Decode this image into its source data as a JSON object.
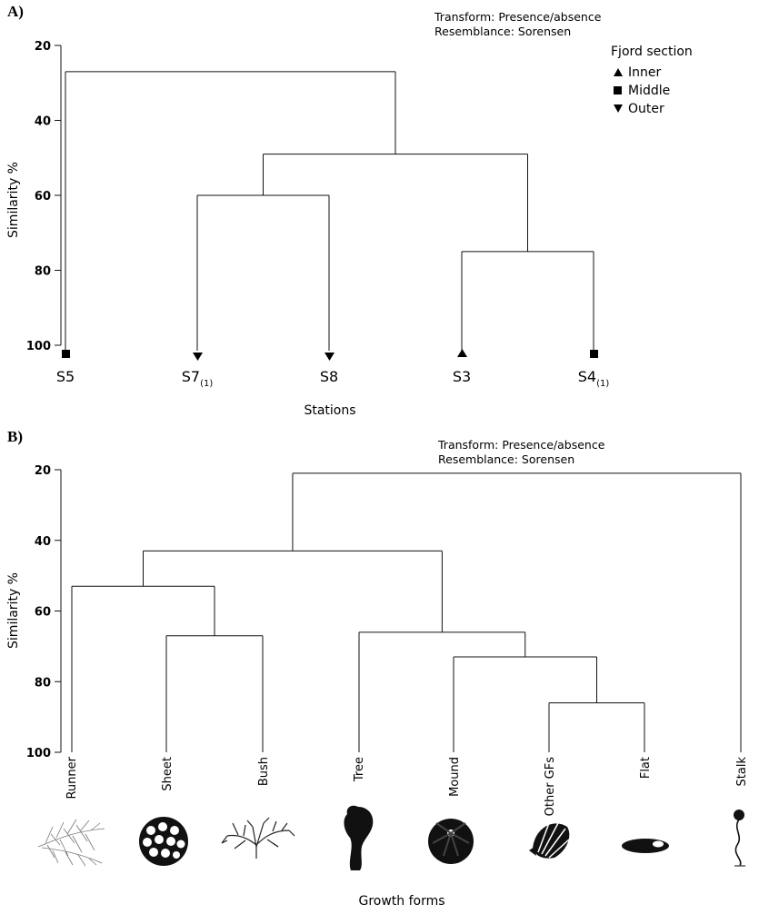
{
  "chart_data": [
    {
      "type": "dendrogram",
      "panel_label": "A)",
      "annotation": [
        "Transform: Presence/absence",
        "Resemblance: Sorensen"
      ],
      "xlabel": "Stations",
      "ylabel": "Similarity %",
      "ylim": [
        20,
        100
      ],
      "yticks": [
        20,
        40,
        60,
        80,
        100
      ],
      "legend": {
        "title": "Fjord section",
        "position": "top-right",
        "entries": [
          {
            "label": "Inner",
            "marker": "triangle-up"
          },
          {
            "label": "Middle",
            "marker": "square"
          },
          {
            "label": "Outer",
            "marker": "triangle-down"
          }
        ]
      },
      "leaves": [
        {
          "label": "S5",
          "sub": "",
          "marker": "square"
        },
        {
          "label": "S7",
          "sub": "(1)",
          "marker": "triangle-down"
        },
        {
          "label": "S8",
          "sub": "",
          "marker": "triangle-down"
        },
        {
          "label": "S3",
          "sub": "",
          "marker": "triangle-up"
        },
        {
          "label": "S4",
          "sub": "(1)",
          "marker": "square"
        }
      ],
      "merges": [
        {
          "a": "L1",
          "b": "L2",
          "sim": 60
        },
        {
          "a": "L3",
          "b": "L4",
          "sim": 75
        },
        {
          "a": "M0",
          "b": "M1",
          "sim": 49
        },
        {
          "a": "L0",
          "b": "M2",
          "sim": 27
        }
      ]
    },
    {
      "type": "dendrogram",
      "panel_label": "B)",
      "annotation": [
        "Transform: Presence/absence",
        "Resemblance: Sorensen"
      ],
      "xlabel": "Growth forms",
      "ylabel": "Similarity %",
      "ylim": [
        20,
        100
      ],
      "yticks": [
        20,
        40,
        60,
        80,
        100
      ],
      "leaves": [
        {
          "label": "Runner",
          "icon": "runner-icon"
        },
        {
          "label": "Sheet",
          "icon": "sheet-icon"
        },
        {
          "label": "Bush",
          "icon": "bush-icon"
        },
        {
          "label": "Tree",
          "icon": "tree-icon"
        },
        {
          "label": "Mound",
          "icon": "mound-icon"
        },
        {
          "label": "Other GFs",
          "icon": "other-gfs-icon"
        },
        {
          "label": "Flat",
          "icon": "flat-icon"
        },
        {
          "label": "Stalk",
          "icon": "stalk-icon"
        }
      ],
      "merges": [
        {
          "a": "L5",
          "b": "L6",
          "sim": 86
        },
        {
          "a": "L1",
          "b": "L2",
          "sim": 67
        },
        {
          "a": "L4",
          "b": "M0",
          "sim": 73
        },
        {
          "a": "L0",
          "b": "M1",
          "sim": 53
        },
        {
          "a": "L3",
          "b": "M2",
          "sim": 66
        },
        {
          "a": "M3",
          "b": "M4",
          "sim": 43
        },
        {
          "a": "M5",
          "b": "L7",
          "sim": 21
        }
      ]
    }
  ]
}
